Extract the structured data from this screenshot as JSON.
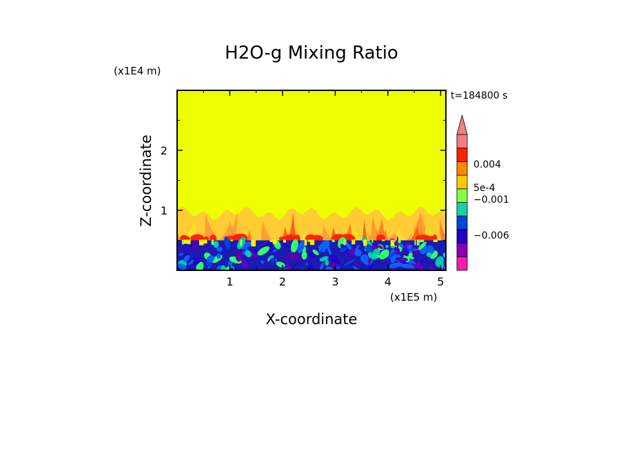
{
  "chart_data": {
    "type": "heatmap",
    "title": "H2O-g Mixing Ratio",
    "xlabel": "X-coordinate",
    "ylabel": "Z-coordinate",
    "x_unit": "(x1E5 m)",
    "y_unit": "(x1E4 m)",
    "time_label": "t=184800 s",
    "xlim": [
      0,
      5.1
    ],
    "ylim": [
      0,
      3
    ],
    "x_ticks": [
      "1",
      "2",
      "3",
      "4",
      "5"
    ],
    "y_ticks": [
      "1",
      "2"
    ],
    "colorbar": {
      "labels": [
        {
          "text": "0.004",
          "value": 0.004
        },
        {
          "text": "5e-4",
          "value": 0.0005
        },
        {
          "text": "−0.001",
          "value": -0.001
        },
        {
          "text": "−0.006",
          "value": -0.006
        }
      ],
      "colors": [
        "#ff1aa8",
        "#8800b0",
        "#2200c8",
        "#0044d8",
        "#18d0a0",
        "#88ff44",
        "#ffcc00",
        "#ff8800",
        "#ff2200",
        "#f08080"
      ],
      "extend": "max"
    },
    "fields": {
      "background_color": "#eeff00",
      "upper_band_value": "5e-4 to 0.004",
      "upper_band_z_range": [
        0.5,
        1.0
      ],
      "lower_band_value": "-0.006 to -0.001",
      "lower_band_z_range": [
        0,
        0.5
      ]
    }
  }
}
